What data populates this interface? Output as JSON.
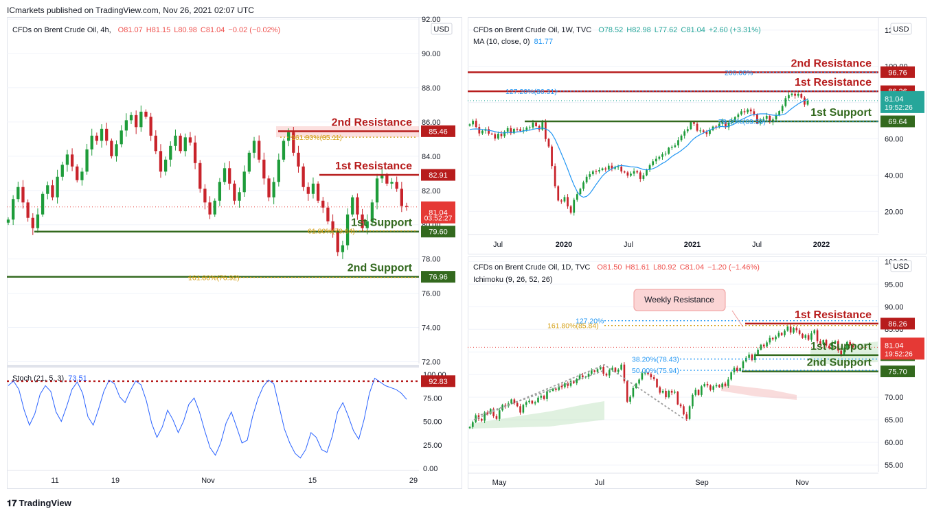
{
  "header": {
    "publisher_line": "ICmarkets published on TradingView.com, Nov 26, 2021 02:07 UTC"
  },
  "footer": {
    "brand": "TradingView"
  },
  "colors": {
    "up": "#26a69a",
    "up_body": "#1e9c3a",
    "down": "#ef5350",
    "down_body": "#c8232b",
    "resistance": "#b71c1c",
    "support": "#33691e",
    "fib": "#d4a017",
    "ma": "#2196f3",
    "last_price": "#e53935",
    "weekly_last": "#26a69a",
    "stoch": "#2962ff"
  },
  "chart_data": [
    {
      "id": "h4",
      "type": "candlestick",
      "legend": {
        "symbol": "CFDs on Brent Crude Oil, 4h,",
        "open": "O81.07",
        "high": "H81.15",
        "low": "L80.98",
        "close": "C81.04",
        "change": "−0.02 (−0.02%)"
      },
      "currency": "USD",
      "x_ticks": [
        "11",
        "19",
        "Nov",
        "15",
        "29"
      ],
      "y_ticks": [
        "92.00",
        "90.00",
        "88.00",
        "86.00",
        "84.00",
        "82.00",
        "80.00",
        "78.00",
        "76.00",
        "74.00",
        "72.00"
      ],
      "ylim": [
        71.9,
        92.0
      ],
      "price_labels": [
        {
          "label": "2nd Resistance",
          "value": "85.46",
          "price": 85.46,
          "kind": "res"
        },
        {
          "label": "1st Resistance",
          "value": "82.91",
          "price": 82.91,
          "kind": "res"
        },
        {
          "label": "1st Support",
          "value": "79.60",
          "price": 79.6,
          "kind": "sup"
        },
        {
          "label": "2nd Support",
          "value": "76.96",
          "price": 76.96,
          "kind": "sup"
        }
      ],
      "fib_labels": [
        {
          "text": "161.80%(85.11)",
          "price": 85.11
        },
        {
          "text": "61.80%(79.64)",
          "price": 79.64
        },
        {
          "text": "161.80%(76.92)",
          "price": 76.92
        }
      ],
      "last_price": {
        "value": "81.04",
        "countdown": "03:52:27",
        "price": 81.04
      },
      "closes": [
        80.3,
        81.5,
        82.2,
        81.3,
        80.4,
        79.8,
        80.6,
        81.8,
        82.3,
        81.6,
        82.8,
        83.5,
        84.1,
        83.4,
        82.6,
        83.1,
        84.4,
        85.2,
        84.9,
        85.6,
        84.9,
        84.0,
        84.7,
        85.5,
        86.1,
        86.4,
        85.7,
        86.6,
        86.3,
        85.2,
        84.3,
        83.1,
        83.8,
        84.6,
        85.2,
        84.3,
        85.1,
        84.8,
        83.6,
        82.1,
        81.3,
        80.6,
        81.4,
        82.5,
        83.3,
        82.4,
        81.4,
        81.9,
        83.1,
        84.2,
        84.9,
        83.8,
        82.7,
        81.6,
        82.5,
        83.8,
        84.9,
        85.4,
        84.2,
        83.4,
        82.2,
        81.8,
        82.4,
        81.4,
        81.0,
        80.2,
        79.6,
        78.4,
        78.8,
        80.6,
        81.6,
        80.6,
        79.8,
        80.2,
        81.3,
        82.7,
        82.9,
        82.4,
        82.5,
        82.1,
        81.1,
        81.04
      ],
      "stoch": {
        "legend": "Stoch (21, 5, 3)",
        "value": "73.51",
        "level_value": "92.83",
        "level": 92.83,
        "y_ticks": [
          "100.00",
          "75.00",
          "50.00",
          "25.00",
          "0.00"
        ],
        "values": [
          88,
          93,
          84,
          62,
          46,
          58,
          79,
          88,
          82,
          60,
          50,
          66,
          84,
          92,
          80,
          55,
          46,
          63,
          82,
          94,
          90,
          76,
          70,
          83,
          93,
          89,
          72,
          48,
          33,
          44,
          62,
          52,
          38,
          50,
          68,
          75,
          60,
          40,
          22,
          14,
          27,
          48,
          60,
          44,
          27,
          30,
          55,
          74,
          87,
          94,
          90,
          66,
          42,
          27,
          16,
          11,
          20,
          38,
          33,
          20,
          17,
          34,
          60,
          70,
          56,
          40,
          31,
          52,
          80,
          96,
          92,
          88,
          86,
          84,
          80,
          73.5
        ]
      }
    },
    {
      "id": "w1",
      "type": "candlestick",
      "legend": {
        "symbol": "CFDs on Brent Crude Oil, 1W, TVC",
        "open": "O78.52",
        "high": "H82.98",
        "low": "L77.62",
        "close": "C81.04",
        "change": "+2.60 (+3.31%)"
      },
      "ma_legend": {
        "label": "MA (10, close, 0)",
        "value": "81.77"
      },
      "currency": "USD",
      "x_ticks": [
        "Jul",
        "2020",
        "Jul",
        "2021",
        "Jul",
        "2022"
      ],
      "y_ticks": [
        "120.00",
        "100.00",
        "80.00",
        "60.00",
        "40.00",
        "20.00"
      ],
      "ylim": [
        8,
        126
      ],
      "price_labels": [
        {
          "label": "2nd Resistance",
          "value": "96.76",
          "price": 96.76,
          "kind": "res"
        },
        {
          "label": "1st Resistance",
          "value": "86.26",
          "price": 86.26,
          "kind": "res"
        },
        {
          "label": "1st Support",
          "value": "69.64",
          "price": 69.64,
          "kind": "sup"
        }
      ],
      "fib_labels": [
        {
          "text": "200.00%",
          "price": 96.76
        },
        {
          "text": "127.20%(86.31)",
          "price": 86.31
        },
        {
          "text": "78.60%(69.59)",
          "price": 69.59
        }
      ],
      "last_price": {
        "value": "81.04",
        "countdown": "19:52:26",
        "price": 81.04
      },
      "closes": [
        68.0,
        70.0,
        66.6,
        63.0,
        64.5,
        65.4,
        62.9,
        62.6,
        60.2,
        62.8,
        61.5,
        64.0,
        65.9,
        63.1,
        65.5,
        65.3,
        64.4,
        64.9,
        66.2,
        66.3,
        69.0,
        67.0,
        65.1,
        69.2,
        59.9,
        55.8,
        45.0,
        33.9,
        26.0,
        25.5,
        27.9,
        22.8,
        19.3,
        26.4,
        29.5,
        32.5,
        36.0,
        39.1,
        40.5,
        42.1,
        42.0,
        42.8,
        43.7,
        43.1,
        45.2,
        43.6,
        44.5,
        44.7,
        42.0,
        41.5,
        39.7,
        40.8,
        42.2,
        41.5,
        37.9,
        39.9,
        43.0,
        45.5,
        47.6,
        49.0,
        50.1,
        51.5,
        51.8,
        55.1,
        55.6,
        56.4,
        59.3,
        61.8,
        64.2,
        65.4,
        69.2,
        68.3,
        64.5,
        64.6,
        63.8,
        62.7,
        64.8,
        66.8,
        66.4,
        68.3,
        69.6,
        66.4,
        68.9,
        70.3,
        72.0,
        73.5,
        75.2,
        74.7,
        76.2,
        75.2,
        73.5,
        68.6,
        70.7,
        71.0,
        72.7,
        69.2,
        70.7,
        73.0,
        75.3,
        78.1,
        82.4,
        84.2,
        84.9,
        83.8,
        84.8,
        82.7,
        78.9,
        81.04
      ],
      "ma": [
        65.2,
        65.4,
        65.5,
        65.4,
        65.2,
        65.0,
        64.7,
        64.4,
        64.0,
        63.6,
        63.3,
        63.3,
        63.5,
        63.6,
        63.6,
        63.8,
        64.0,
        64.3,
        64.6,
        64.8,
        65.3,
        65.6,
        65.7,
        66.0,
        65.5,
        64.6,
        62.8,
        59.8,
        56.0,
        51.9,
        47.8,
        43.4,
        38.8,
        34.5,
        31.0,
        28.7,
        27.8,
        28.3,
        29.8,
        32.2,
        34.8,
        37.2,
        39.5,
        41.2,
        42.4,
        43.5,
        44.4,
        45.1,
        45.3,
        45.1,
        44.9,
        44.6,
        44.5,
        44.3,
        43.7,
        43.1,
        42.9,
        43.1,
        43.6,
        44.3,
        45.4,
        46.5,
        47.4,
        48.8,
        50.3,
        51.4,
        52.4,
        53.6,
        55.0,
        56.5,
        58.5,
        60.2,
        61.4,
        62.4,
        63.2,
        64.1,
        64.9,
        65.6,
        66.3,
        66.8,
        66.8,
        66.6,
        67.0,
        67.6,
        68.4,
        69.5,
        70.6,
        71.4,
        72.3,
        73.0,
        73.4,
        73.6,
        73.8,
        73.8,
        73.8,
        73.4,
        73.1,
        73.0,
        73.0,
        73.3,
        73.9,
        75.4,
        76.8,
        78.1,
        79.3,
        80.3,
        81.2,
        81.77
      ]
    },
    {
      "id": "d1",
      "type": "candlestick",
      "legend": {
        "symbol": "CFDs on Brent Crude Oil, 1D, TVC",
        "open": "O81.50",
        "high": "H81.61",
        "low": "L80.92",
        "close": "C81.04",
        "change": "−1.20 (−1.46%)"
      },
      "ichimoku_legend": {
        "label": "Ichimoku (9, 26, 52, 26)"
      },
      "currency": "USD",
      "x_ticks": [
        "May",
        "Jul",
        "Sep",
        "Nov"
      ],
      "y_ticks": [
        "100.00",
        "95.00",
        "90.00",
        "85.00",
        "80.00",
        "75.00",
        "70.00",
        "65.00",
        "60.00",
        "55.00"
      ],
      "ylim": [
        53.5,
        100.5
      ],
      "callout": "Weekly Resistance",
      "price_labels": [
        {
          "label": "1st Resistance",
          "value": "86.26",
          "price": 86.26,
          "kind": "res"
        },
        {
          "label": "1st Support",
          "value": "79.30",
          "price": 79.3,
          "kind": "sup"
        },
        {
          "label": "2nd Support",
          "value": "75.70",
          "price": 75.7,
          "kind": "sup"
        }
      ],
      "fib_labels": [
        {
          "text": "127.20%",
          "price": 86.9
        },
        {
          "text": "161.80%(85.84)",
          "price": 85.84
        },
        {
          "text": "38.20%(78.43)",
          "price": 78.43
        },
        {
          "text": "50.00%(75.94)",
          "price": 75.94
        }
      ],
      "last_price": {
        "value": "81.04",
        "countdown": "19:52:26",
        "price": 81.04
      },
      "closes": [
        63.4,
        64.5,
        66.0,
        65.2,
        64.8,
        66.6,
        66.3,
        67.4,
        65.8,
        65.2,
        67.1,
        68.3,
        68.0,
        68.6,
        69.5,
        68.7,
        68.0,
        66.6,
        68.3,
        68.9,
        69.2,
        68.6,
        68.9,
        69.9,
        70.3,
        69.6,
        71.3,
        71.4,
        71.9,
        71.6,
        72.5,
        72.2,
        73.1,
        72.5,
        73.6,
        73.1,
        74.0,
        74.8,
        74.4,
        74.5,
        75.2,
        75.9,
        75.6,
        76.2,
        76.7,
        75.2,
        74.8,
        76.0,
        76.5,
        75.6,
        76.1,
        77.2,
        73.5,
        69.0,
        70.1,
        72.0,
        73.0,
        73.9,
        75.3,
        75.4,
        75.1,
        74.4,
        74.0,
        72.2,
        71.0,
        71.4,
        70.0,
        71.4,
        71.0,
        71.2,
        68.4,
        68.0,
        66.2,
        65.2,
        68.0,
        70.5,
        71.6,
        70.5,
        72.4,
        72.9,
        72.6,
        71.6,
        72.4,
        72.7,
        72.2,
        73.0,
        72.5,
        73.9,
        75.5,
        76.5,
        75.8,
        76.4,
        77.9,
        78.7,
        79.4,
        78.2,
        79.5,
        80.5,
        81.6,
        81.2,
        82.1,
        83.1,
        82.8,
        83.4,
        84.2,
        83.7,
        84.7,
        85.6,
        84.3,
        85.3,
        84.8,
        84.0,
        83.1,
        83.7,
        82.7,
        84.1,
        84.8,
        82.4,
        81.7,
        82.6,
        81.4,
        80.8,
        82.0,
        82.4,
        80.3,
        79.3,
        80.8,
        82.2,
        81.5,
        81.04
      ]
    }
  ]
}
